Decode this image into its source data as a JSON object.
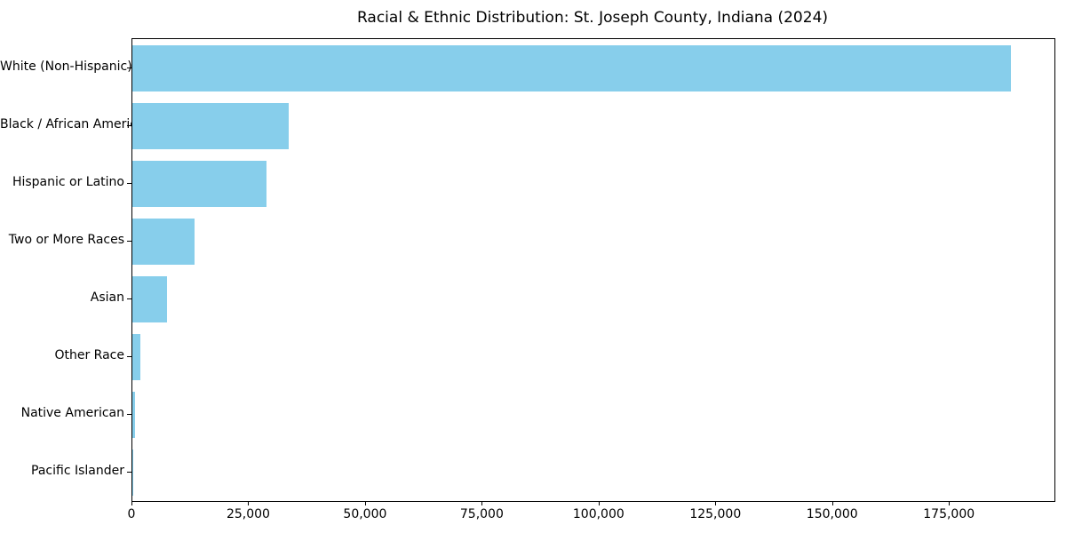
{
  "title": "Racial & Ethnic Distribution: St. Joseph County, Indiana (2024)",
  "chart_data": {
    "type": "bar",
    "orientation": "horizontal",
    "title": "Racial & Ethnic Distribution: St. Joseph County, Indiana (2024)",
    "xlabel": "",
    "ylabel": "",
    "categories": [
      "White (Non-Hispanic)",
      "Black / African American",
      "Hispanic or Latino",
      "Two or More Races",
      "Asian",
      "Other Race",
      "Native American",
      "Pacific Islander"
    ],
    "values": [
      188000,
      33500,
      28700,
      13400,
      7500,
      1700,
      600,
      150
    ],
    "xlim": [
      0,
      197400
    ],
    "x_ticks": [
      0,
      25000,
      50000,
      75000,
      100000,
      125000,
      150000,
      175000
    ],
    "x_tick_labels": [
      "0",
      "25,000",
      "50,000",
      "75,000",
      "100,000",
      "125,000",
      "150,000",
      "175,000"
    ],
    "bar_color": "#87CEEB",
    "grid": false,
    "legend": "none"
  }
}
